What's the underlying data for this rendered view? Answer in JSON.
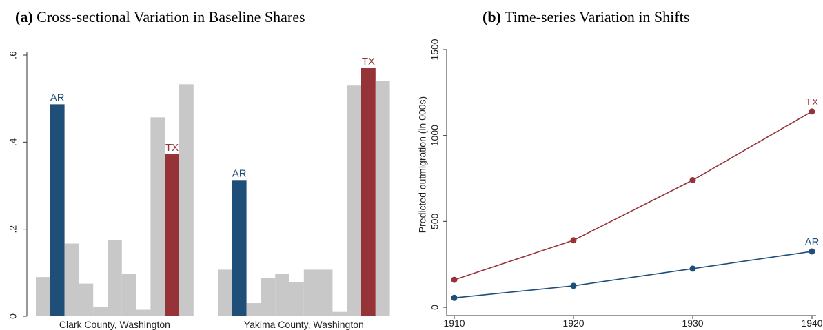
{
  "panels": {
    "a": {
      "letter": "(a)",
      "title": "Cross-sectional Variation in Baseline Shares"
    },
    "b": {
      "letter": "(b)",
      "title": "Time-series Variation in Shifts"
    }
  },
  "colors": {
    "ar": "#1f4e79",
    "tx": "#963339",
    "other": "#c8c8c8",
    "axis": "#333333"
  },
  "chart_data": [
    {
      "type": "bar",
      "title": "Cross-sectional Variation in Baseline Shares",
      "ylim": [
        0,
        0.6
      ],
      "yticks": [
        0,
        0.2,
        0.4,
        0.6
      ],
      "ytick_labels": [
        "0",
        ".2",
        ".4",
        ".6"
      ],
      "groups": [
        {
          "label": "Clark County, Washington",
          "values": [
            0.09,
            0.487,
            0.167,
            0.075,
            0.022,
            0.175,
            0.098,
            0.015,
            0.457,
            0.372,
            0.533
          ],
          "highlight": {
            "1": "AR",
            "9": "TX"
          }
        },
        {
          "label": "Yakima County, Washington",
          "values": [
            0.107,
            0.313,
            0.03,
            0.088,
            0.097,
            0.079,
            0.107,
            0.107,
            0.01,
            0.53,
            0.57,
            0.54
          ],
          "highlight": {
            "1": "AR",
            "10": "TX"
          }
        }
      ]
    },
    {
      "type": "line",
      "title": "Time-series Variation in Shifts",
      "ylabel": "Predicted outmigration (in 000s)",
      "x": [
        1910,
        1920,
        1930,
        1940
      ],
      "ylim": [
        0,
        1500
      ],
      "yticks": [
        0,
        500,
        1000,
        1500
      ],
      "series": [
        {
          "name": "TX",
          "values": [
            160,
            390,
            740,
            1140
          ]
        },
        {
          "name": "AR",
          "values": [
            55,
            125,
            225,
            325
          ]
        }
      ]
    }
  ]
}
